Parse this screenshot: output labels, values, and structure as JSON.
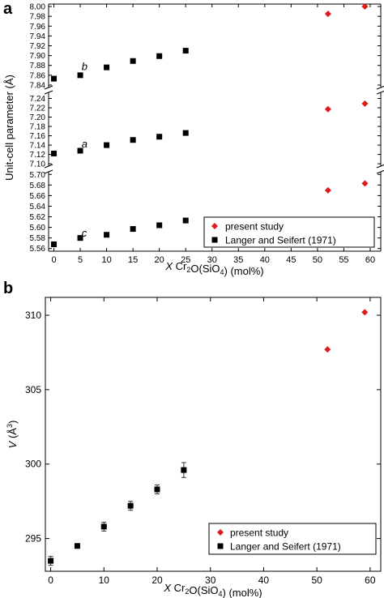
{
  "panels": {
    "a": {
      "letter": "a"
    },
    "b": {
      "letter": "b"
    }
  },
  "colors": {
    "present": "#e0191c",
    "langer": "#000000"
  },
  "chart_data": [
    {
      "type": "scatter",
      "panel": "a",
      "title": "",
      "xlabel": "X Cr2O(SiO4) (mol%)",
      "ylabel": "Unit-cell parameter (Å)",
      "xlim": [
        -1,
        62
      ],
      "x_ticks": [
        0,
        5,
        10,
        15,
        20,
        25,
        30,
        35,
        40,
        45,
        50,
        55,
        60
      ],
      "broken_y_axis": true,
      "segments": [
        {
          "name": "b",
          "ylim": [
            7.835,
            8.005
          ],
          "ticks": [
            7.84,
            7.86,
            7.88,
            7.9,
            7.92,
            7.94,
            7.96,
            7.98,
            8.0
          ],
          "tick_labels": [
            "7.84",
            "7.86",
            "7.88",
            "7.90",
            "7.92",
            "7.94",
            "7.96",
            "7.98",
            "8.00"
          ]
        },
        {
          "name": "a",
          "ylim": [
            7.095,
            7.253
          ],
          "ticks": [
            7.1,
            7.12,
            7.14,
            7.16,
            7.18,
            7.2,
            7.22,
            7.24
          ],
          "tick_labels": [
            "7.10",
            "7.12",
            "7.14",
            "7.16",
            "7.18",
            "7.20",
            "7.22",
            "7.24"
          ]
        },
        {
          "name": "c",
          "ylim": [
            5.555,
            5.705
          ],
          "ticks": [
            5.56,
            5.58,
            5.6,
            5.62,
            5.64,
            5.66,
            5.68,
            5.7
          ],
          "tick_labels": [
            "5.56",
            "5.58",
            "5.60",
            "5.62",
            "5.64",
            "5.66",
            "5.68",
            "5.70"
          ]
        }
      ],
      "series": [
        {
          "name": "present study",
          "marker": "diamond",
          "color": "#e0191c",
          "points": {
            "b": [
              [
                52,
                7.985
              ],
              [
                59,
                8.0
              ]
            ],
            "a": [
              [
                52,
                7.217
              ],
              [
                59,
                7.229
              ]
            ],
            "c": [
              [
                52,
                5.67
              ],
              [
                59,
                5.683
              ]
            ]
          }
        },
        {
          "name": "Langer and Seifert (1971)",
          "marker": "square",
          "color": "#000000",
          "points": {
            "b": [
              [
                0,
                7.853
              ],
              [
                5,
                7.86
              ],
              [
                10,
                7.876
              ],
              [
                15,
                7.889
              ],
              [
                20,
                7.899
              ],
              [
                25,
                7.91
              ]
            ],
            "a": [
              [
                0,
                7.122
              ],
              [
                5,
                7.128
              ],
              [
                10,
                7.14
              ],
              [
                15,
                7.151
              ],
              [
                20,
                7.158
              ],
              [
                25,
                7.166
              ]
            ],
            "c": [
              [
                0,
                5.568
              ],
              [
                5,
                5.58
              ],
              [
                10,
                5.586
              ],
              [
                15,
                5.597
              ],
              [
                20,
                5.604
              ],
              [
                25,
                5.613
              ]
            ]
          }
        }
      ],
      "legend": {
        "position": "bottom-right",
        "entries": [
          "present study",
          "Langer and Seifert (1971)"
        ]
      }
    },
    {
      "type": "scatter",
      "panel": "b",
      "title": "",
      "xlabel": "X Cr2O(SiO4) (mol%)",
      "ylabel": "V (Å3)",
      "xlim": [
        -1,
        62
      ],
      "ylim": [
        292.8,
        311.2
      ],
      "x_ticks": [
        0,
        10,
        20,
        30,
        40,
        50,
        60
      ],
      "y_ticks": [
        295,
        300,
        305,
        310
      ],
      "series": [
        {
          "name": "present study",
          "marker": "diamond",
          "color": "#e0191c",
          "x": [
            52,
            59
          ],
          "y": [
            307.7,
            310.2
          ]
        },
        {
          "name": "Langer and Seifert (1971)",
          "marker": "square",
          "color": "#000000",
          "x": [
            0,
            5,
            10,
            15,
            20,
            25
          ],
          "y": [
            293.5,
            294.5,
            295.8,
            297.2,
            298.3,
            299.6
          ],
          "yerr": [
            0.3,
            0.1,
            0.3,
            0.3,
            0.3,
            0.5
          ]
        }
      ],
      "legend": {
        "position": "bottom-right",
        "entries": [
          "present study",
          "Langer and Seifert (1971)"
        ]
      }
    }
  ]
}
